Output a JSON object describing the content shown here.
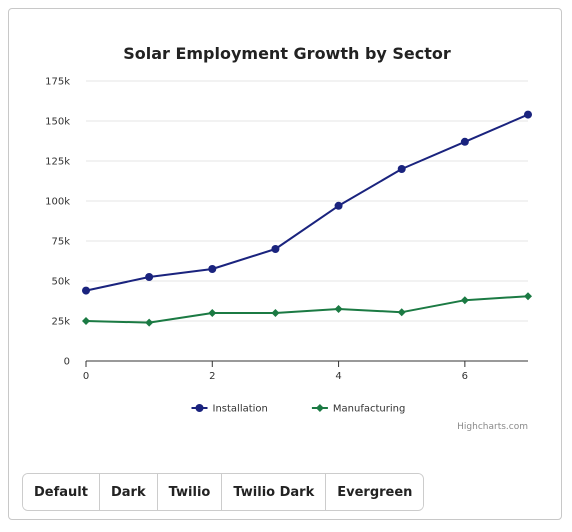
{
  "chart_data": {
    "type": "line",
    "title": "Solar Employment Growth by Sector",
    "x": [
      0,
      1,
      2,
      3,
      4,
      5,
      6,
      7
    ],
    "x_ticks": [
      "0",
      "2",
      "4",
      "6"
    ],
    "y_ticks": [
      "0",
      "25k",
      "50k",
      "75k",
      "100k",
      "125k",
      "150k",
      "175k"
    ],
    "xlim": [
      0,
      7
    ],
    "ylim": [
      0,
      175000
    ],
    "grid": true,
    "legend_position": "bottom-center",
    "series": [
      {
        "name": "Installation",
        "color": "#1a237e",
        "marker": "circle",
        "values": [
          44000,
          52500,
          57500,
          70000,
          97000,
          120000,
          137000,
          154000
        ]
      },
      {
        "name": "Manufacturing",
        "color": "#1b7a43",
        "marker": "diamond",
        "values": [
          25000,
          24000,
          30000,
          30000,
          32500,
          30500,
          38000,
          40500
        ]
      }
    ],
    "credits": "Highcharts.com"
  },
  "theme_buttons": [
    "Default",
    "Dark",
    "Twilio",
    "Twilio Dark",
    "Evergreen"
  ]
}
